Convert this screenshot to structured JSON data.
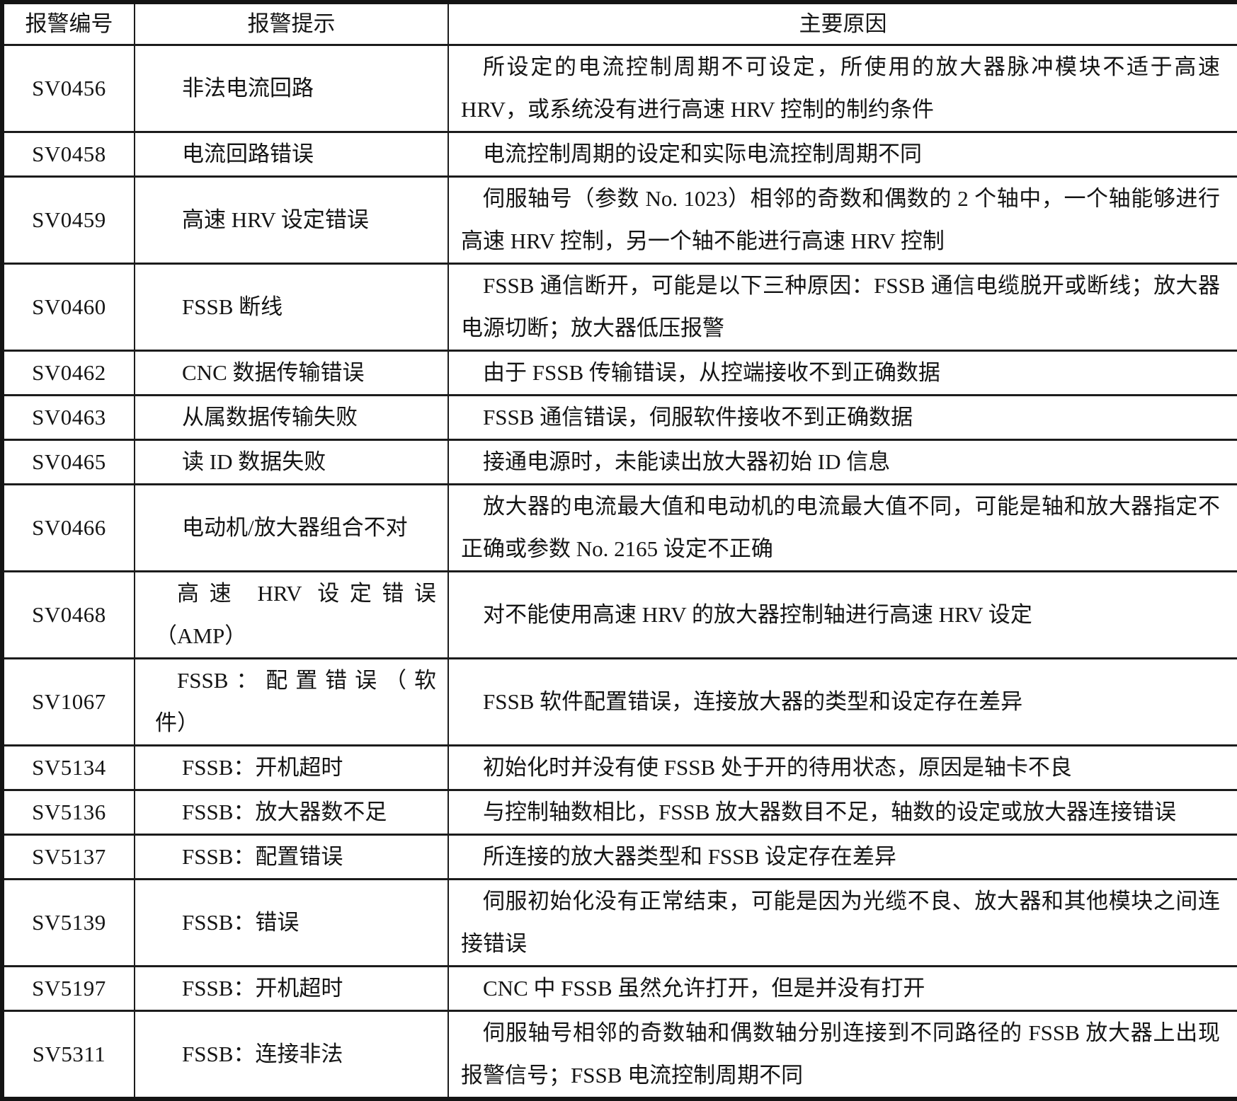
{
  "table": {
    "headers": [
      "报警编号",
      "报警提示",
      "主要原因"
    ],
    "rows": [
      {
        "code": "SV0456",
        "prompt": "非法电流回路",
        "cause": "所设定的电流控制周期不可设定，所使用的放大器脉冲模块不适于高速 HRV，或系统没有进行高速 HRV 控制的制约条件"
      },
      {
        "code": "SV0458",
        "prompt": "电流回路错误",
        "cause": "电流控制周期的设定和实际电流控制周期不同"
      },
      {
        "code": "SV0459",
        "prompt": "高速 HRV 设定错误",
        "cause": "伺服轴号（参数 No. 1023）相邻的奇数和偶数的 2 个轴中，一个轴能够进行高速 HRV 控制，另一个轴不能进行高速 HRV 控制"
      },
      {
        "code": "SV0460",
        "prompt": "FSSB 断线",
        "cause": "FSSB 通信断开，可能是以下三种原因：FSSB 通信电缆脱开或断线；放大器电源切断；放大器低压报警"
      },
      {
        "code": "SV0462",
        "prompt": "CNC 数据传输错误",
        "cause": "由于 FSSB 传输错误，从控端接收不到正确数据"
      },
      {
        "code": "SV0463",
        "prompt": "从属数据传输失败",
        "cause": "FSSB 通信错误，伺服软件接收不到正确数据"
      },
      {
        "code": "SV0465",
        "prompt": "读 ID 数据失败",
        "cause": "接通电源时，未能读出放大器初始 ID 信息"
      },
      {
        "code": "SV0466",
        "prompt": "电动机/放大器组合不对",
        "cause": "放大器的电流最大值和电动机的电流最大值不同，可能是轴和放大器指定不正确或参数 No. 2165 设定不正确"
      },
      {
        "code": "SV0468",
        "prompt_lines": [
          "高速 HRV 设定错误",
          "（AMP）"
        ],
        "cause": "对不能使用高速 HRV 的放大器控制轴进行高速 HRV 设定"
      },
      {
        "code": "SV1067",
        "prompt_lines": [
          "FSSB：配置错误（软",
          "件）"
        ],
        "cause": "FSSB 软件配置错误，连接放大器的类型和设定存在差异"
      },
      {
        "code": "SV5134",
        "prompt": "FSSB：开机超时",
        "cause": "初始化时并没有使 FSSB 处于开的待用状态，原因是轴卡不良"
      },
      {
        "code": "SV5136",
        "prompt": "FSSB：放大器数不足",
        "cause": "与控制轴数相比，FSSB 放大器数目不足，轴数的设定或放大器连接错误"
      },
      {
        "code": "SV5137",
        "prompt": "FSSB：配置错误",
        "cause": "所连接的放大器类型和 FSSB 设定存在差异"
      },
      {
        "code": "SV5139",
        "prompt": "FSSB：错误",
        "cause": "伺服初始化没有正常结束，可能是因为光缆不良、放大器和其他模块之间连接错误"
      },
      {
        "code": "SV5197",
        "prompt": "FSSB：开机超时",
        "cause": "CNC 中 FSSB 虽然允许打开，但是并没有打开"
      },
      {
        "code": "SV5311",
        "prompt": "FSSB：连接非法",
        "cause": "伺服轴号相邻的奇数轴和偶数轴分别连接到不同路径的 FSSB 放大器上出现报警信号；FSSB 电流控制周期不同"
      }
    ]
  }
}
